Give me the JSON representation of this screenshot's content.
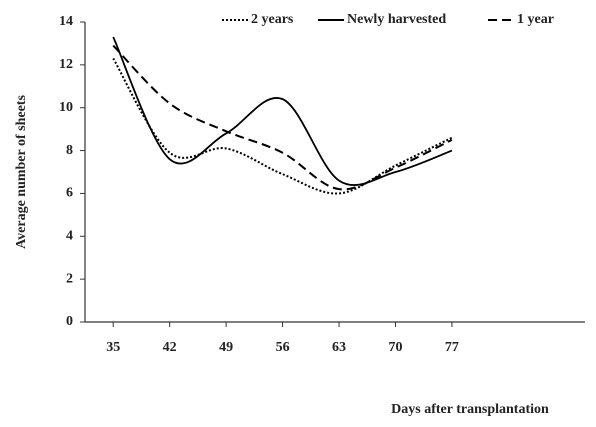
{
  "chart_data": {
    "type": "line",
    "x_label": "Days after transplantation",
    "y_label": "Average number of sheets",
    "x": [
      35,
      42,
      49,
      56,
      63,
      70,
      77
    ],
    "series": [
      {
        "name": "2 years",
        "color": "#000000",
        "dash": "dotted",
        "values": [
          12.3,
          7.9,
          8.1,
          6.9,
          6.0,
          7.3,
          8.6
        ]
      },
      {
        "name": "Newly harvested",
        "color": "#000000",
        "dash": "solid",
        "values": [
          13.3,
          7.6,
          8.8,
          10.4,
          6.6,
          7.0,
          8.0
        ]
      },
      {
        "name": "1 year",
        "color": "#000000",
        "dash": "dashed",
        "values": [
          12.9,
          10.2,
          8.9,
          7.9,
          6.2,
          7.2,
          8.5
        ]
      }
    ],
    "xlim": [
      31.5,
      93.5
    ],
    "xticks": [
      35,
      42,
      49,
      56,
      63,
      70,
      77
    ],
    "ylim": [
      0,
      14
    ],
    "yticks": [
      0,
      2,
      4,
      6,
      8,
      10,
      12,
      14
    ],
    "grid": false,
    "legend": "top"
  }
}
